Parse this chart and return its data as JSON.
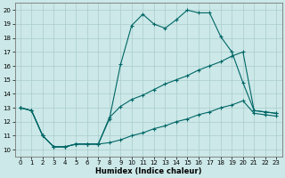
{
  "xlabel": "Humidex (Indice chaleur)",
  "background_color": "#cce8e8",
  "grid_color": "#aacccc",
  "line_color": "#006666",
  "xlim": [
    -0.5,
    23.5
  ],
  "ylim": [
    9.5,
    20.5
  ],
  "xticks": [
    0,
    1,
    2,
    3,
    4,
    5,
    6,
    7,
    8,
    9,
    10,
    11,
    12,
    13,
    14,
    15,
    16,
    17,
    18,
    19,
    20,
    21,
    22,
    23
  ],
  "yticks": [
    10,
    11,
    12,
    13,
    14,
    15,
    16,
    17,
    18,
    19,
    20
  ],
  "line1_x": [
    0,
    1,
    2,
    3,
    4,
    5,
    6,
    7,
    8,
    9,
    10,
    11,
    12,
    13,
    14,
    15,
    16,
    17,
    18,
    19,
    20,
    21,
    22,
    23
  ],
  "line1_y": [
    13.0,
    12.8,
    11.0,
    10.2,
    10.2,
    10.4,
    10.4,
    10.4,
    12.2,
    16.1,
    18.9,
    19.7,
    19.0,
    18.7,
    19.3,
    20.0,
    19.8,
    19.8,
    18.1,
    17.0,
    14.8,
    12.8,
    12.7,
    12.6
  ],
  "line2_x": [
    0,
    1,
    2,
    3,
    4,
    5,
    6,
    7,
    8,
    9,
    10,
    11,
    12,
    13,
    14,
    15,
    16,
    17,
    18,
    19,
    20,
    21,
    22,
    23
  ],
  "line2_y": [
    13.0,
    12.8,
    11.0,
    10.2,
    10.2,
    10.4,
    10.4,
    10.4,
    12.3,
    13.1,
    13.6,
    13.9,
    14.3,
    14.7,
    15.0,
    15.3,
    15.7,
    16.0,
    16.3,
    16.7,
    17.0,
    12.8,
    12.7,
    12.6
  ],
  "line3_x": [
    0,
    1,
    2,
    3,
    4,
    5,
    6,
    7,
    8,
    9,
    10,
    11,
    12,
    13,
    14,
    15,
    16,
    17,
    18,
    19,
    20,
    21,
    22,
    23
  ],
  "line3_y": [
    13.0,
    12.8,
    11.0,
    10.2,
    10.2,
    10.4,
    10.4,
    10.4,
    10.5,
    10.7,
    11.0,
    11.2,
    11.5,
    11.7,
    12.0,
    12.2,
    12.5,
    12.7,
    13.0,
    13.2,
    13.5,
    12.6,
    12.5,
    12.4
  ]
}
